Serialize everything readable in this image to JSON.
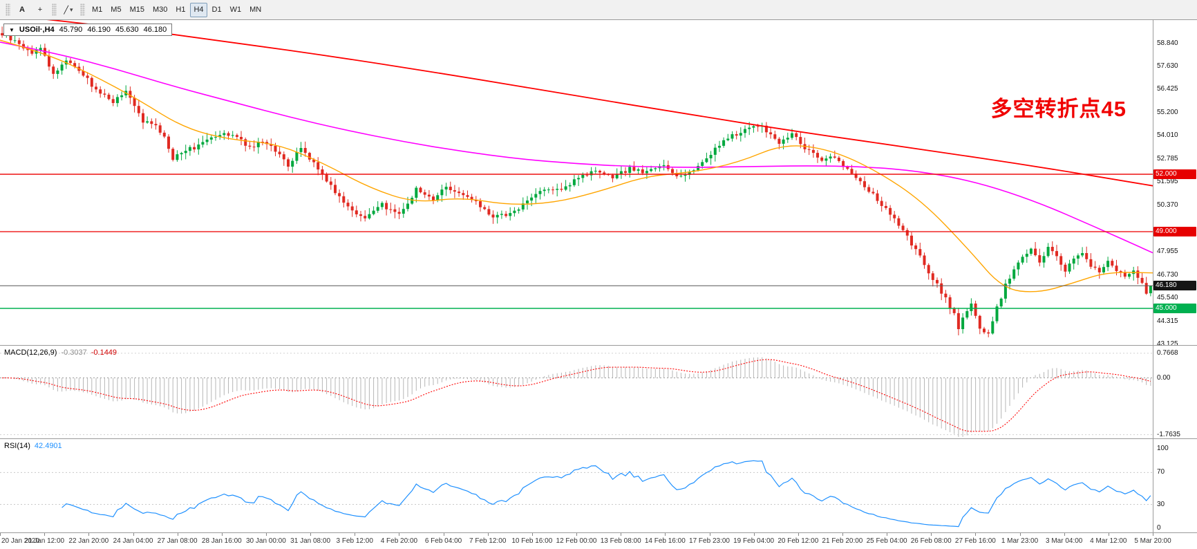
{
  "toolbar": {
    "text_tool_label": "A",
    "crosshair_icon": "+",
    "line_tool_icon": "╱",
    "dropdown_icon": "▾",
    "timeframes": [
      {
        "label": "M1",
        "active": false
      },
      {
        "label": "M5",
        "active": false
      },
      {
        "label": "M15",
        "active": false
      },
      {
        "label": "M30",
        "active": false
      },
      {
        "label": "H1",
        "active": false
      },
      {
        "label": "H4",
        "active": true
      },
      {
        "label": "D1",
        "active": false
      },
      {
        "label": "W1",
        "active": false
      },
      {
        "label": "MN",
        "active": false
      }
    ]
  },
  "main_chart": {
    "header": {
      "collapse_icon": "▼",
      "symbol_timeframe": "USOil·,H4",
      "open": "45.790",
      "high": "46.190",
      "low": "45.630",
      "close": "46.180"
    },
    "annotation": {
      "text": "多空转折点45",
      "color": "#f00000"
    },
    "price_scale_labels": [
      "58.840",
      "57.630",
      "56.425",
      "55.200",
      "54.010",
      "52.785",
      "51.595",
      "50.370",
      "47.955",
      "46.730",
      "45.540",
      "44.315",
      "43.125"
    ],
    "badges": [
      {
        "label": "52.000",
        "price": 52.0,
        "bg": "#e60000",
        "fg": "#ffffff"
      },
      {
        "label": "49.000",
        "price": 49.0,
        "bg": "#e60000",
        "fg": "#ffffff"
      },
      {
        "label": "46.180",
        "price": 46.18,
        "bg": "#151515",
        "fg": "#ffffff"
      },
      {
        "label": "45.000",
        "price": 45.0,
        "bg": "#00b050",
        "fg": "#ffffff"
      }
    ]
  },
  "macd_panel": {
    "label": "MACD(12,26,9)",
    "value_main": "-0.3037",
    "value_signal": "-0.1449",
    "scale_labels": [
      "0.7668",
      "0.00",
      "-1.7635"
    ]
  },
  "rsi_panel": {
    "label": "RSI(14)",
    "value": "42.4901",
    "scale_labels": [
      "100",
      "70",
      "30",
      "0"
    ]
  },
  "time_axis": {
    "labels": [
      "20 Jan 2020",
      "21 Jan 12:00",
      "22 Jan 20:00",
      "24 Jan 04:00",
      "27 Jan 08:00",
      "28 Jan 16:00",
      "30 Jan 00:00",
      "31 Jan 08:00",
      "3 Feb 12:00",
      "4 Feb 20:00",
      "6 Feb 04:00",
      "7 Feb 12:00",
      "10 Feb 16:00",
      "12 Feb 00:00",
      "13 Feb 08:00",
      "14 Feb 16:00",
      "17 Feb 23:00",
      "19 Feb 04:00",
      "20 Feb 12:00",
      "21 Feb 20:00",
      "25 Feb 04:00",
      "26 Feb 08:00",
      "27 Feb 16:00",
      "1 Mar 23:00",
      "3 Mar 04:00",
      "4 Mar 12:00",
      "5 Mar 20:00"
    ]
  },
  "chart_data": [
    {
      "type": "candlestick",
      "symbol": "USOil",
      "timeframe": "H4",
      "title": "USOil·,H4 45.790 46.190 45.630 46.180",
      "last_ohlc": {
        "open": 45.79,
        "high": 46.19,
        "low": 45.63,
        "close": 46.18
      },
      "num_bars": 270,
      "price_axis": {
        "min": 43.05,
        "max": 60.05,
        "ticks": [
          58.84,
          57.63,
          56.425,
          55.2,
          54.01,
          52.785,
          51.595,
          50.37,
          47.955,
          46.73,
          45.54,
          44.315,
          43.125
        ]
      },
      "colors": {
        "up": "#00a83e",
        "down": "#e02a22"
      },
      "close_waypoints": [
        [
          0,
          59.3
        ],
        [
          2,
          59.05
        ],
        [
          4,
          58.8
        ],
        [
          7,
          58.3
        ],
        [
          9,
          58.65
        ],
        [
          12,
          57.2
        ],
        [
          15,
          58.0
        ],
        [
          18,
          57.45
        ],
        [
          22,
          56.4
        ],
        [
          26,
          55.8
        ],
        [
          29,
          56.3
        ],
        [
          33,
          54.8
        ],
        [
          36,
          54.45
        ],
        [
          38,
          54.0
        ],
        [
          40,
          52.8
        ],
        [
          42,
          53.2
        ],
        [
          45,
          53.4
        ],
        [
          48,
          53.9
        ],
        [
          52,
          54.2
        ],
        [
          55,
          53.95
        ],
        [
          58,
          53.4
        ],
        [
          61,
          53.7
        ],
        [
          63,
          53.55
        ],
        [
          67,
          52.4
        ],
        [
          70,
          53.4
        ],
        [
          73,
          52.6
        ],
        [
          77,
          51.4
        ],
        [
          81,
          50.3
        ],
        [
          85,
          49.7
        ],
        [
          89,
          50.4
        ],
        [
          93,
          49.9
        ],
        [
          97,
          51.2
        ],
        [
          101,
          50.7
        ],
        [
          104,
          51.4
        ],
        [
          107,
          51.0
        ],
        [
          111,
          50.5
        ],
        [
          115,
          49.8
        ],
        [
          119,
          49.9
        ],
        [
          123,
          50.6
        ],
        [
          127,
          51.3
        ],
        [
          131,
          51.1
        ],
        [
          135,
          51.9
        ],
        [
          139,
          52.1
        ],
        [
          143,
          51.8
        ],
        [
          147,
          52.3
        ],
        [
          151,
          52.1
        ],
        [
          155,
          52.5
        ],
        [
          158,
          51.9
        ],
        [
          162,
          52.2
        ],
        [
          166,
          53.1
        ],
        [
          170,
          53.9
        ],
        [
          174,
          54.3
        ],
        [
          177,
          54.6
        ],
        [
          180,
          54.1
        ],
        [
          182,
          53.6
        ],
        [
          185,
          54.1
        ],
        [
          188,
          53.4
        ],
        [
          192,
          52.7
        ],
        [
          194,
          53.0
        ],
        [
          198,
          52.3
        ],
        [
          202,
          51.4
        ],
        [
          206,
          50.4
        ],
        [
          209,
          49.6
        ],
        [
          212,
          48.7
        ],
        [
          216,
          47.3
        ],
        [
          219,
          46.2
        ],
        [
          221,
          45.5
        ],
        [
          223,
          44.7
        ],
        [
          224,
          44.0
        ],
        [
          227,
          45.3
        ],
        [
          229,
          44.0
        ],
        [
          231,
          43.6
        ],
        [
          233,
          45.0
        ],
        [
          235,
          46.2
        ],
        [
          237,
          47.0
        ],
        [
          239,
          47.8
        ],
        [
          241,
          48.1
        ],
        [
          243,
          47.3
        ],
        [
          245,
          48.2
        ],
        [
          247,
          47.7
        ],
        [
          249,
          47.0
        ],
        [
          251,
          47.6
        ],
        [
          253,
          47.9
        ],
        [
          255,
          47.2
        ],
        [
          257,
          46.9
        ],
        [
          259,
          47.4
        ],
        [
          261,
          47.0
        ],
        [
          263,
          46.7
        ],
        [
          265,
          46.9
        ],
        [
          267,
          46.4
        ],
        [
          268,
          45.85
        ],
        [
          269,
          46.18
        ]
      ],
      "overlays": [
        {
          "name": "ma-slow-red",
          "color": "#ff0000",
          "width": 1.8,
          "waypoints": [
            [
              0,
              60.35
            ],
            [
              0.1,
              59.7
            ],
            [
              0.2,
              58.9
            ],
            [
              0.3,
              58.05
            ],
            [
              0.4,
              57.1
            ],
            [
              0.5,
              56.1
            ],
            [
              0.6,
              55.1
            ],
            [
              0.7,
              54.15
            ],
            [
              0.8,
              53.3
            ],
            [
              0.9,
              52.4
            ],
            [
              1,
              51.4
            ]
          ]
        },
        {
          "name": "ma-mid-magenta",
          "color": "#ff00ff",
          "width": 1.6,
          "waypoints": [
            [
              0,
              58.9
            ],
            [
              0.05,
              58.3
            ],
            [
              0.1,
              57.5
            ],
            [
              0.15,
              56.6
            ],
            [
              0.2,
              55.8
            ],
            [
              0.25,
              55.0
            ],
            [
              0.3,
              54.3
            ],
            [
              0.35,
              53.7
            ],
            [
              0.4,
              53.2
            ],
            [
              0.45,
              52.8
            ],
            [
              0.5,
              52.55
            ],
            [
              0.55,
              52.4
            ],
            [
              0.6,
              52.35
            ],
            [
              0.65,
              52.4
            ],
            [
              0.7,
              52.45
            ],
            [
              0.75,
              52.4
            ],
            [
              0.8,
              52.15
            ],
            [
              0.85,
              51.55
            ],
            [
              0.9,
              50.55
            ],
            [
              0.95,
              49.25
            ],
            [
              1,
              47.9
            ]
          ]
        },
        {
          "name": "ma-fast-orange",
          "color": "#ffa500",
          "width": 1.4,
          "waypoints": [
            [
              0,
              59.0
            ],
            [
              0.04,
              58.3
            ],
            [
              0.08,
              57.2
            ],
            [
              0.12,
              55.9
            ],
            [
              0.16,
              54.4
            ],
            [
              0.2,
              53.8
            ],
            [
              0.24,
              53.6
            ],
            [
              0.28,
              52.6
            ],
            [
              0.32,
              51.3
            ],
            [
              0.36,
              50.5
            ],
            [
              0.4,
              50.8
            ],
            [
              0.44,
              50.4
            ],
            [
              0.48,
              50.5
            ],
            [
              0.52,
              51.1
            ],
            [
              0.56,
              51.9
            ],
            [
              0.6,
              52.1
            ],
            [
              0.64,
              52.6
            ],
            [
              0.68,
              53.6
            ],
            [
              0.72,
              53.3
            ],
            [
              0.76,
              52.2
            ],
            [
              0.8,
              50.6
            ],
            [
              0.84,
              48.1
            ],
            [
              0.87,
              46.0
            ],
            [
              0.9,
              45.8
            ],
            [
              0.93,
              46.3
            ],
            [
              0.96,
              46.9
            ],
            [
              1,
              46.85
            ]
          ]
        }
      ],
      "hlines": [
        {
          "name": "resistance-52",
          "price": 52.0,
          "color": "#ee1111",
          "width": 1.4
        },
        {
          "name": "support-49",
          "price": 49.0,
          "color": "#ee1111",
          "width": 1.4
        },
        {
          "name": "support-45",
          "price": 45.0,
          "color": "#00b050",
          "width": 1.6
        },
        {
          "name": "current-price-line",
          "price": 46.18,
          "color": "#555555",
          "width": 1
        }
      ]
    },
    {
      "type": "macd",
      "params": {
        "fast": 12,
        "slow": 26,
        "signal": 9
      },
      "current": {
        "macd": -0.3037,
        "signal": -0.1449
      },
      "axis": {
        "min": -1.9,
        "max": 1.0,
        "tick_values": [
          0.7668,
          0.0,
          -1.7635
        ]
      },
      "colors": {
        "histogram": "#b6b6b6",
        "signal": "#ff0000",
        "zero_line": "#999999",
        "level_line": "#d0d0d0"
      }
    },
    {
      "type": "rsi",
      "period": 14,
      "current": 42.4901,
      "axis": {
        "min": -6,
        "max": 112,
        "tick_values": [
          100,
          70,
          30,
          0
        ],
        "levels": [
          70,
          30
        ]
      },
      "color": "#1e90ff",
      "level_line_color": "#c8c8c8"
    }
  ]
}
